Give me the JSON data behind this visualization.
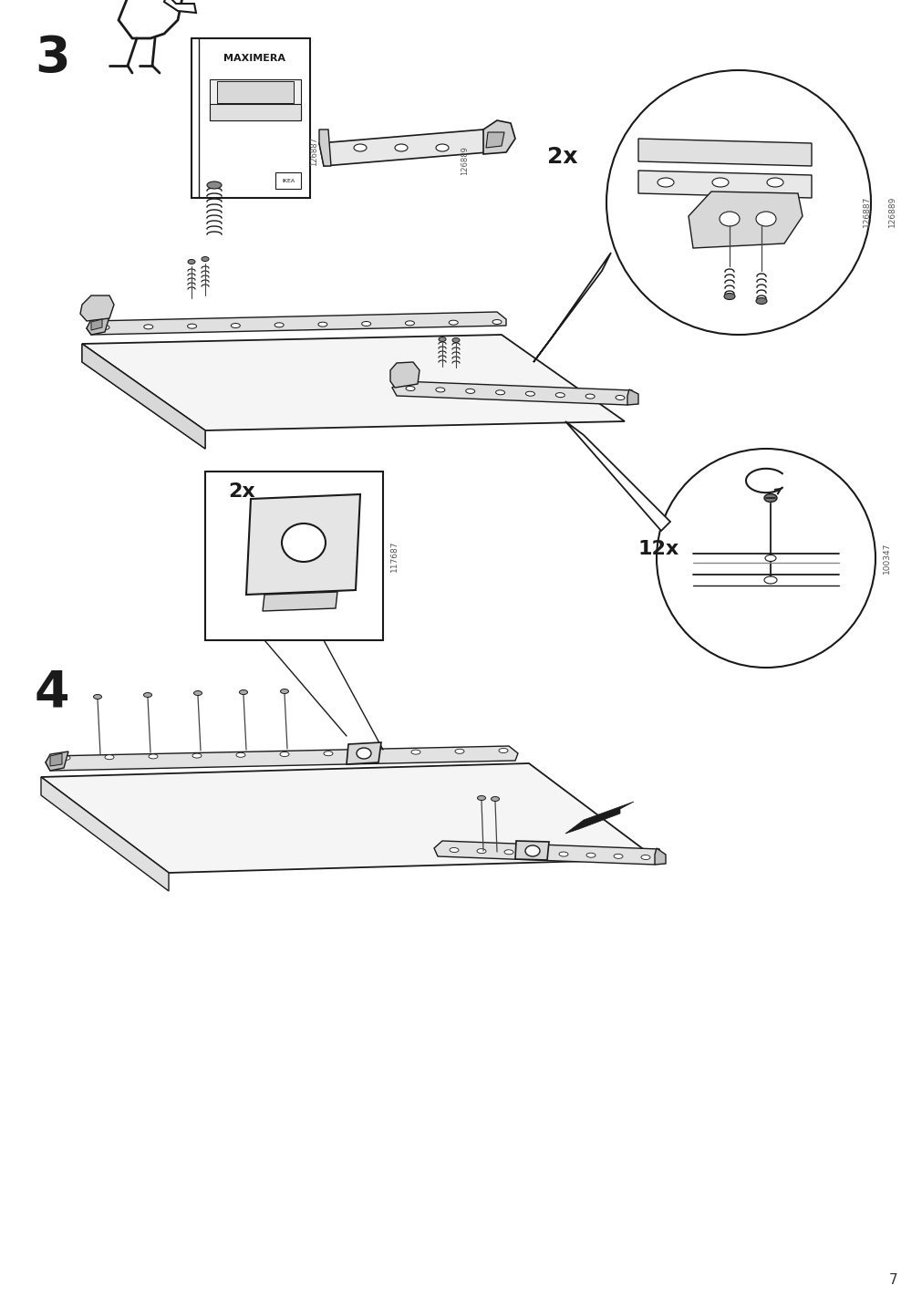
{
  "bg_color": "#ffffff",
  "page_number": "7",
  "lc": "#1a1a1a",
  "gray1": "#e8e8e8",
  "gray2": "#d0d0d0",
  "gray3": "#b0b0b0",
  "step3_num": "3",
  "step4_num": "4",
  "label_2x": "2x",
  "label_12x": "12x",
  "label_126887": "126887",
  "label_126889": "126889",
  "label_117687": "117687",
  "label_100347": "100347",
  "maximera": "MAXIMERA"
}
